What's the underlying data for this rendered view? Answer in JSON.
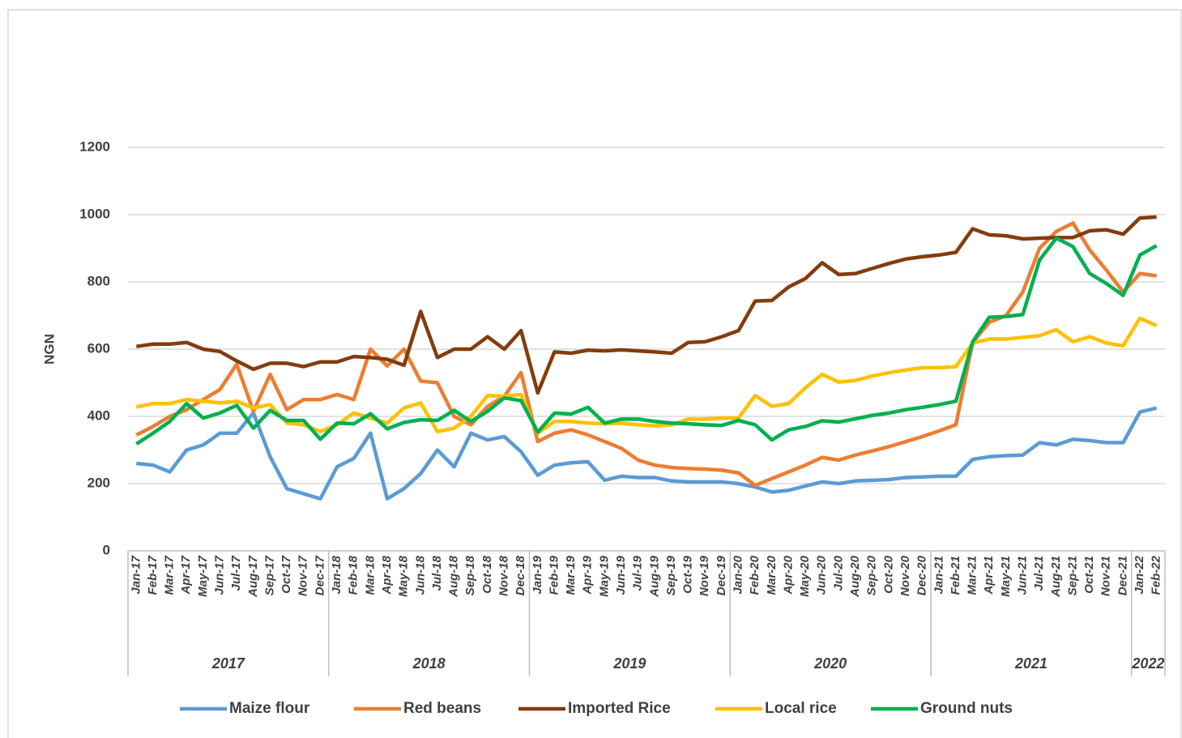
{
  "chart_data": {
    "type": "line",
    "y_label": "NGN",
    "categories": [
      "Jan-17",
      "Feb-17",
      "Mar-17",
      "Apr-17",
      "May-17",
      "Jun-17",
      "Jul-17",
      "Aug-17",
      "Sep-17",
      "Oct-17",
      "Nov-17",
      "Dec-17",
      "Jan-18",
      "Feb-18",
      "Mar-18",
      "Apr-18",
      "May-18",
      "Jun-18",
      "Jul-18",
      "Aug-18",
      "Sep-18",
      "Oct-18",
      "Nov-18",
      "Dec-18",
      "Jan-19",
      "Feb-19",
      "Mar-19",
      "Apr-19",
      "May-19",
      "Jun-19",
      "Jul-19",
      "Aug-19",
      "Sep-19",
      "Oct-19",
      "Nov-19",
      "Dec-19",
      "Jan-20",
      "Feb-20",
      "Mar-20",
      "Apr-20",
      "May-20",
      "Jun-20",
      "Jul-20",
      "Aug-20",
      "Sep-20",
      "Oct-20",
      "Nov-20",
      "Dec-20",
      "Jan-21",
      "Feb-21",
      "Mar-21",
      "Apr-21",
      "May-21",
      "Jun-21",
      "Jul-21",
      "Aug-21",
      "Sep-21",
      "Oct-21",
      "Nov-21",
      "Dec-21",
      "Jan-22",
      "Feb-22"
    ],
    "year_groups": [
      "2017",
      "2018",
      "2019",
      "2020",
      "2021",
      "2022"
    ],
    "series": [
      {
        "name": "Maize flour",
        "color": "#5b9bd5",
        "values": [
          260,
          255,
          235,
          300,
          315,
          350,
          350,
          410,
          280,
          185,
          170,
          155,
          250,
          275,
          350,
          155,
          185,
          230,
          300,
          250,
          350,
          330,
          340,
          295,
          225,
          255,
          262,
          265,
          210,
          222,
          218,
          218,
          208,
          205,
          205,
          205,
          200,
          190,
          175,
          180,
          193,
          205,
          200,
          208,
          210,
          212,
          218,
          220,
          222,
          222,
          272,
          280,
          283,
          285,
          322,
          315,
          332,
          328,
          322,
          322,
          413,
          425
        ]
      },
      {
        "name": "Red beans",
        "color": "#ed7d31",
        "values": [
          345,
          370,
          400,
          420,
          450,
          480,
          555,
          415,
          525,
          420,
          450,
          450,
          465,
          450,
          600,
          550,
          600,
          505,
          500,
          400,
          375,
          430,
          460,
          530,
          325,
          350,
          360,
          345,
          325,
          305,
          270,
          255,
          248,
          245,
          243,
          240,
          232,
          195,
          215,
          235,
          255,
          278,
          270,
          285,
          297,
          310,
          325,
          340,
          357,
          375,
          620,
          680,
          700,
          770,
          900,
          950,
          975,
          895,
          835,
          770,
          825,
          818
        ]
      },
      {
        "name": "Imported Rice",
        "color": "#843c0c",
        "values": [
          608,
          615,
          615,
          620,
          600,
          593,
          565,
          540,
          558,
          558,
          548,
          562,
          562,
          578,
          575,
          570,
          552,
          712,
          575,
          600,
          600,
          637,
          600,
          655,
          470,
          592,
          588,
          597,
          595,
          598,
          595,
          592,
          588,
          620,
          622,
          637,
          655,
          743,
          745,
          785,
          810,
          857,
          822,
          825,
          840,
          855,
          868,
          875,
          880,
          888,
          958,
          940,
          937,
          928,
          930,
          932,
          932,
          952,
          955,
          942,
          990,
          993
        ]
      },
      {
        "name": "Local rice",
        "color": "#ffc000",
        "values": [
          428,
          438,
          438,
          450,
          445,
          440,
          445,
          425,
          435,
          380,
          375,
          355,
          375,
          410,
          395,
          380,
          425,
          440,
          355,
          365,
          400,
          462,
          460,
          465,
          350,
          385,
          385,
          380,
          378,
          380,
          375,
          372,
          375,
          392,
          392,
          395,
          395,
          462,
          430,
          438,
          485,
          525,
          502,
          507,
          520,
          530,
          538,
          545,
          545,
          548,
          618,
          630,
          630,
          635,
          640,
          658,
          622,
          637,
          618,
          610,
          692,
          670
        ]
      },
      {
        "name": "Ground nuts",
        "color": "#00b050",
        "values": [
          318,
          350,
          385,
          438,
          395,
          410,
          433,
          365,
          418,
          388,
          388,
          332,
          380,
          378,
          408,
          363,
          382,
          390,
          388,
          418,
          385,
          415,
          455,
          447,
          353,
          410,
          407,
          427,
          380,
          392,
          392,
          385,
          380,
          378,
          375,
          373,
          388,
          375,
          330,
          360,
          370,
          387,
          383,
          393,
          403,
          410,
          420,
          427,
          435,
          445,
          622,
          695,
          697,
          703,
          865,
          930,
          905,
          825,
          795,
          760,
          880,
          908
        ]
      }
    ],
    "ylim": [
      0,
      1200
    ],
    "yticks": [
      0,
      200,
      400,
      600,
      800,
      1000,
      1200
    ],
    "grid": true
  }
}
